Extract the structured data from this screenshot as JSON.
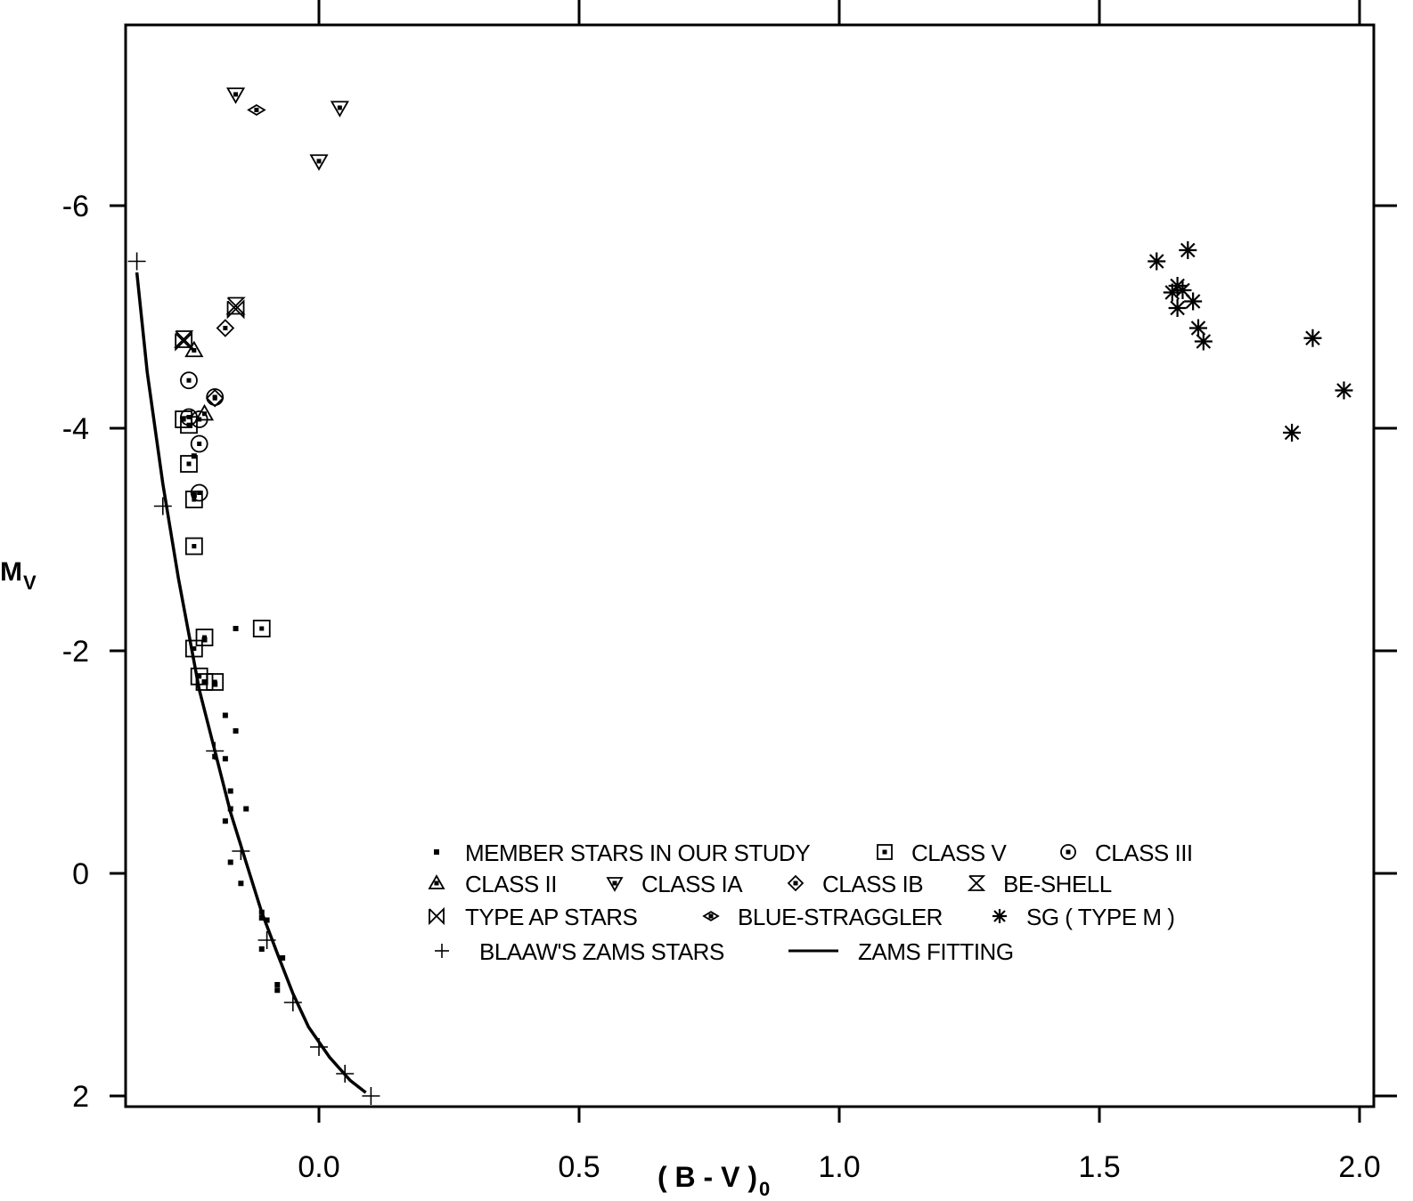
{
  "chart_data": {
    "type": "scatter",
    "xlabel": "( B - V )",
    "xlabel_subscript": "0",
    "ylabel": "M",
    "ylabel_subscript": "V",
    "xlim": [
      -0.37,
      2.05
    ],
    "ylim": [
      2.1,
      -7.6
    ],
    "y_inverted": true,
    "x_ticks": [
      0.0,
      0.5,
      1.0,
      1.5,
      2.0
    ],
    "x_tick_labels": [
      "0.0",
      "0.5",
      "1.0",
      "1.5",
      "2.0"
    ],
    "y_ticks": [
      -6,
      -4,
      -2,
      0,
      2
    ],
    "y_tick_labels": [
      "-6",
      "-4",
      "-2",
      "0",
      "2"
    ],
    "grid": false,
    "legend_position": "lower-center",
    "series": [
      {
        "name": "MEMBER STARS IN OUR STUDY",
        "marker": "small-square",
        "points": [
          [
            -0.16,
            -2.2
          ],
          [
            -0.22,
            -2.1
          ],
          [
            -0.2,
            -1.7
          ],
          [
            -0.22,
            -1.72
          ],
          [
            -0.18,
            -1.42
          ],
          [
            -0.16,
            -1.28
          ],
          [
            -0.2,
            -1.05
          ],
          [
            -0.18,
            -1.03
          ],
          [
            -0.17,
            -0.74
          ],
          [
            -0.17,
            -0.58
          ],
          [
            -0.14,
            -0.58
          ],
          [
            -0.18,
            -0.47
          ],
          [
            -0.17,
            -0.1
          ],
          [
            -0.15,
            0.09
          ],
          [
            -0.11,
            0.35
          ],
          [
            -0.11,
            0.4
          ],
          [
            -0.1,
            0.42
          ],
          [
            -0.11,
            0.68
          ],
          [
            -0.07,
            0.76
          ],
          [
            -0.08,
            1.0
          ],
          [
            -0.08,
            1.05
          ],
          [
            -0.24,
            -3.4
          ],
          [
            -0.24,
            -3.75
          ]
        ]
      },
      {
        "name": "CLASS V",
        "marker": "square",
        "points": [
          [
            -0.26,
            -4.08
          ],
          [
            -0.25,
            -4.03
          ],
          [
            -0.25,
            -3.68
          ],
          [
            -0.24,
            -3.36
          ],
          [
            -0.24,
            -2.94
          ],
          [
            -0.11,
            -2.2
          ],
          [
            -0.22,
            -2.12
          ],
          [
            -0.24,
            -2.02
          ],
          [
            -0.23,
            -1.77
          ],
          [
            -0.22,
            -1.72
          ],
          [
            -0.2,
            -1.72
          ]
        ]
      },
      {
        "name": "CLASS III",
        "marker": "circle",
        "points": [
          [
            -0.25,
            -4.43
          ],
          [
            -0.25,
            -4.1
          ],
          [
            -0.23,
            -4.08
          ],
          [
            -0.23,
            -3.86
          ],
          [
            -0.23,
            -3.42
          ],
          [
            -0.2,
            -4.28
          ]
        ]
      },
      {
        "name": "CLASS II",
        "marker": "triangle-up",
        "points": [
          [
            -0.24,
            -4.7
          ],
          [
            -0.22,
            -4.13
          ]
        ]
      },
      {
        "name": "CLASS IA",
        "marker": "triangle-down",
        "points": [
          [
            -0.16,
            -7.0
          ],
          [
            0.04,
            -6.88
          ],
          [
            0.0,
            -6.4
          ]
        ]
      },
      {
        "name": "CLASS IB",
        "marker": "diamond",
        "points": [
          [
            -0.18,
            -4.9
          ],
          [
            -0.2,
            -4.27
          ]
        ]
      },
      {
        "name": "BE-SHELL",
        "marker": "hourglass",
        "points": [
          [
            -0.16,
            -5.1
          ],
          [
            -0.26,
            -4.8
          ]
        ]
      },
      {
        "name": "TYPE AP STARS",
        "marker": "bowtie",
        "points": [
          [
            -0.16,
            -5.07
          ],
          [
            -0.26,
            -4.78
          ]
        ]
      },
      {
        "name": "BLUE-STRAGGLER",
        "marker": "small-diamond",
        "points": [
          [
            -0.12,
            -6.86
          ]
        ]
      },
      {
        "name": "SG ( TYPE M )",
        "marker": "asterisk",
        "points": [
          [
            1.61,
            -5.5
          ],
          [
            1.67,
            -5.6
          ],
          [
            1.64,
            -5.22
          ],
          [
            1.65,
            -5.28
          ],
          [
            1.66,
            -5.24
          ],
          [
            1.65,
            -5.08
          ],
          [
            1.68,
            -5.14
          ],
          [
            1.69,
            -4.9
          ],
          [
            1.7,
            -4.78
          ],
          [
            1.91,
            -4.81
          ],
          [
            1.97,
            -4.34
          ],
          [
            1.87,
            -3.96
          ]
        ]
      },
      {
        "name": "BLAAW'S ZAMS  STARS",
        "marker": "plus",
        "points": [
          [
            -0.35,
            -5.5
          ],
          [
            -0.3,
            -3.3
          ],
          [
            -0.2,
            -1.1
          ],
          [
            -0.15,
            -0.2
          ],
          [
            -0.1,
            0.6
          ],
          [
            -0.05,
            1.16
          ],
          [
            0.0,
            1.56
          ],
          [
            0.05,
            1.8
          ],
          [
            0.1,
            2.0
          ]
        ]
      },
      {
        "name": "ZAMS  FITTING",
        "marker": "line",
        "points": [
          [
            -0.35,
            -5.4
          ],
          [
            -0.33,
            -4.5
          ],
          [
            -0.3,
            -3.5
          ],
          [
            -0.27,
            -2.65
          ],
          [
            -0.25,
            -2.15
          ],
          [
            -0.23,
            -1.65
          ],
          [
            -0.2,
            -1.1
          ],
          [
            -0.17,
            -0.55
          ],
          [
            -0.14,
            -0.1
          ],
          [
            -0.11,
            0.35
          ],
          [
            -0.08,
            0.72
          ],
          [
            -0.05,
            1.08
          ],
          [
            -0.02,
            1.38
          ],
          [
            0.02,
            1.65
          ],
          [
            0.06,
            1.86
          ],
          [
            0.09,
            1.97
          ]
        ]
      }
    ],
    "legend_order": [
      "MEMBER STARS IN OUR STUDY",
      "CLASS V",
      "CLASS III",
      "CLASS II",
      "CLASS IA",
      "CLASS IB",
      "BE-SHELL",
      "TYPE AP STARS",
      "BLUE-STRAGGLER",
      "SG ( TYPE M )",
      "BLAAW'S ZAMS  STARS",
      "ZAMS  FITTING"
    ]
  }
}
